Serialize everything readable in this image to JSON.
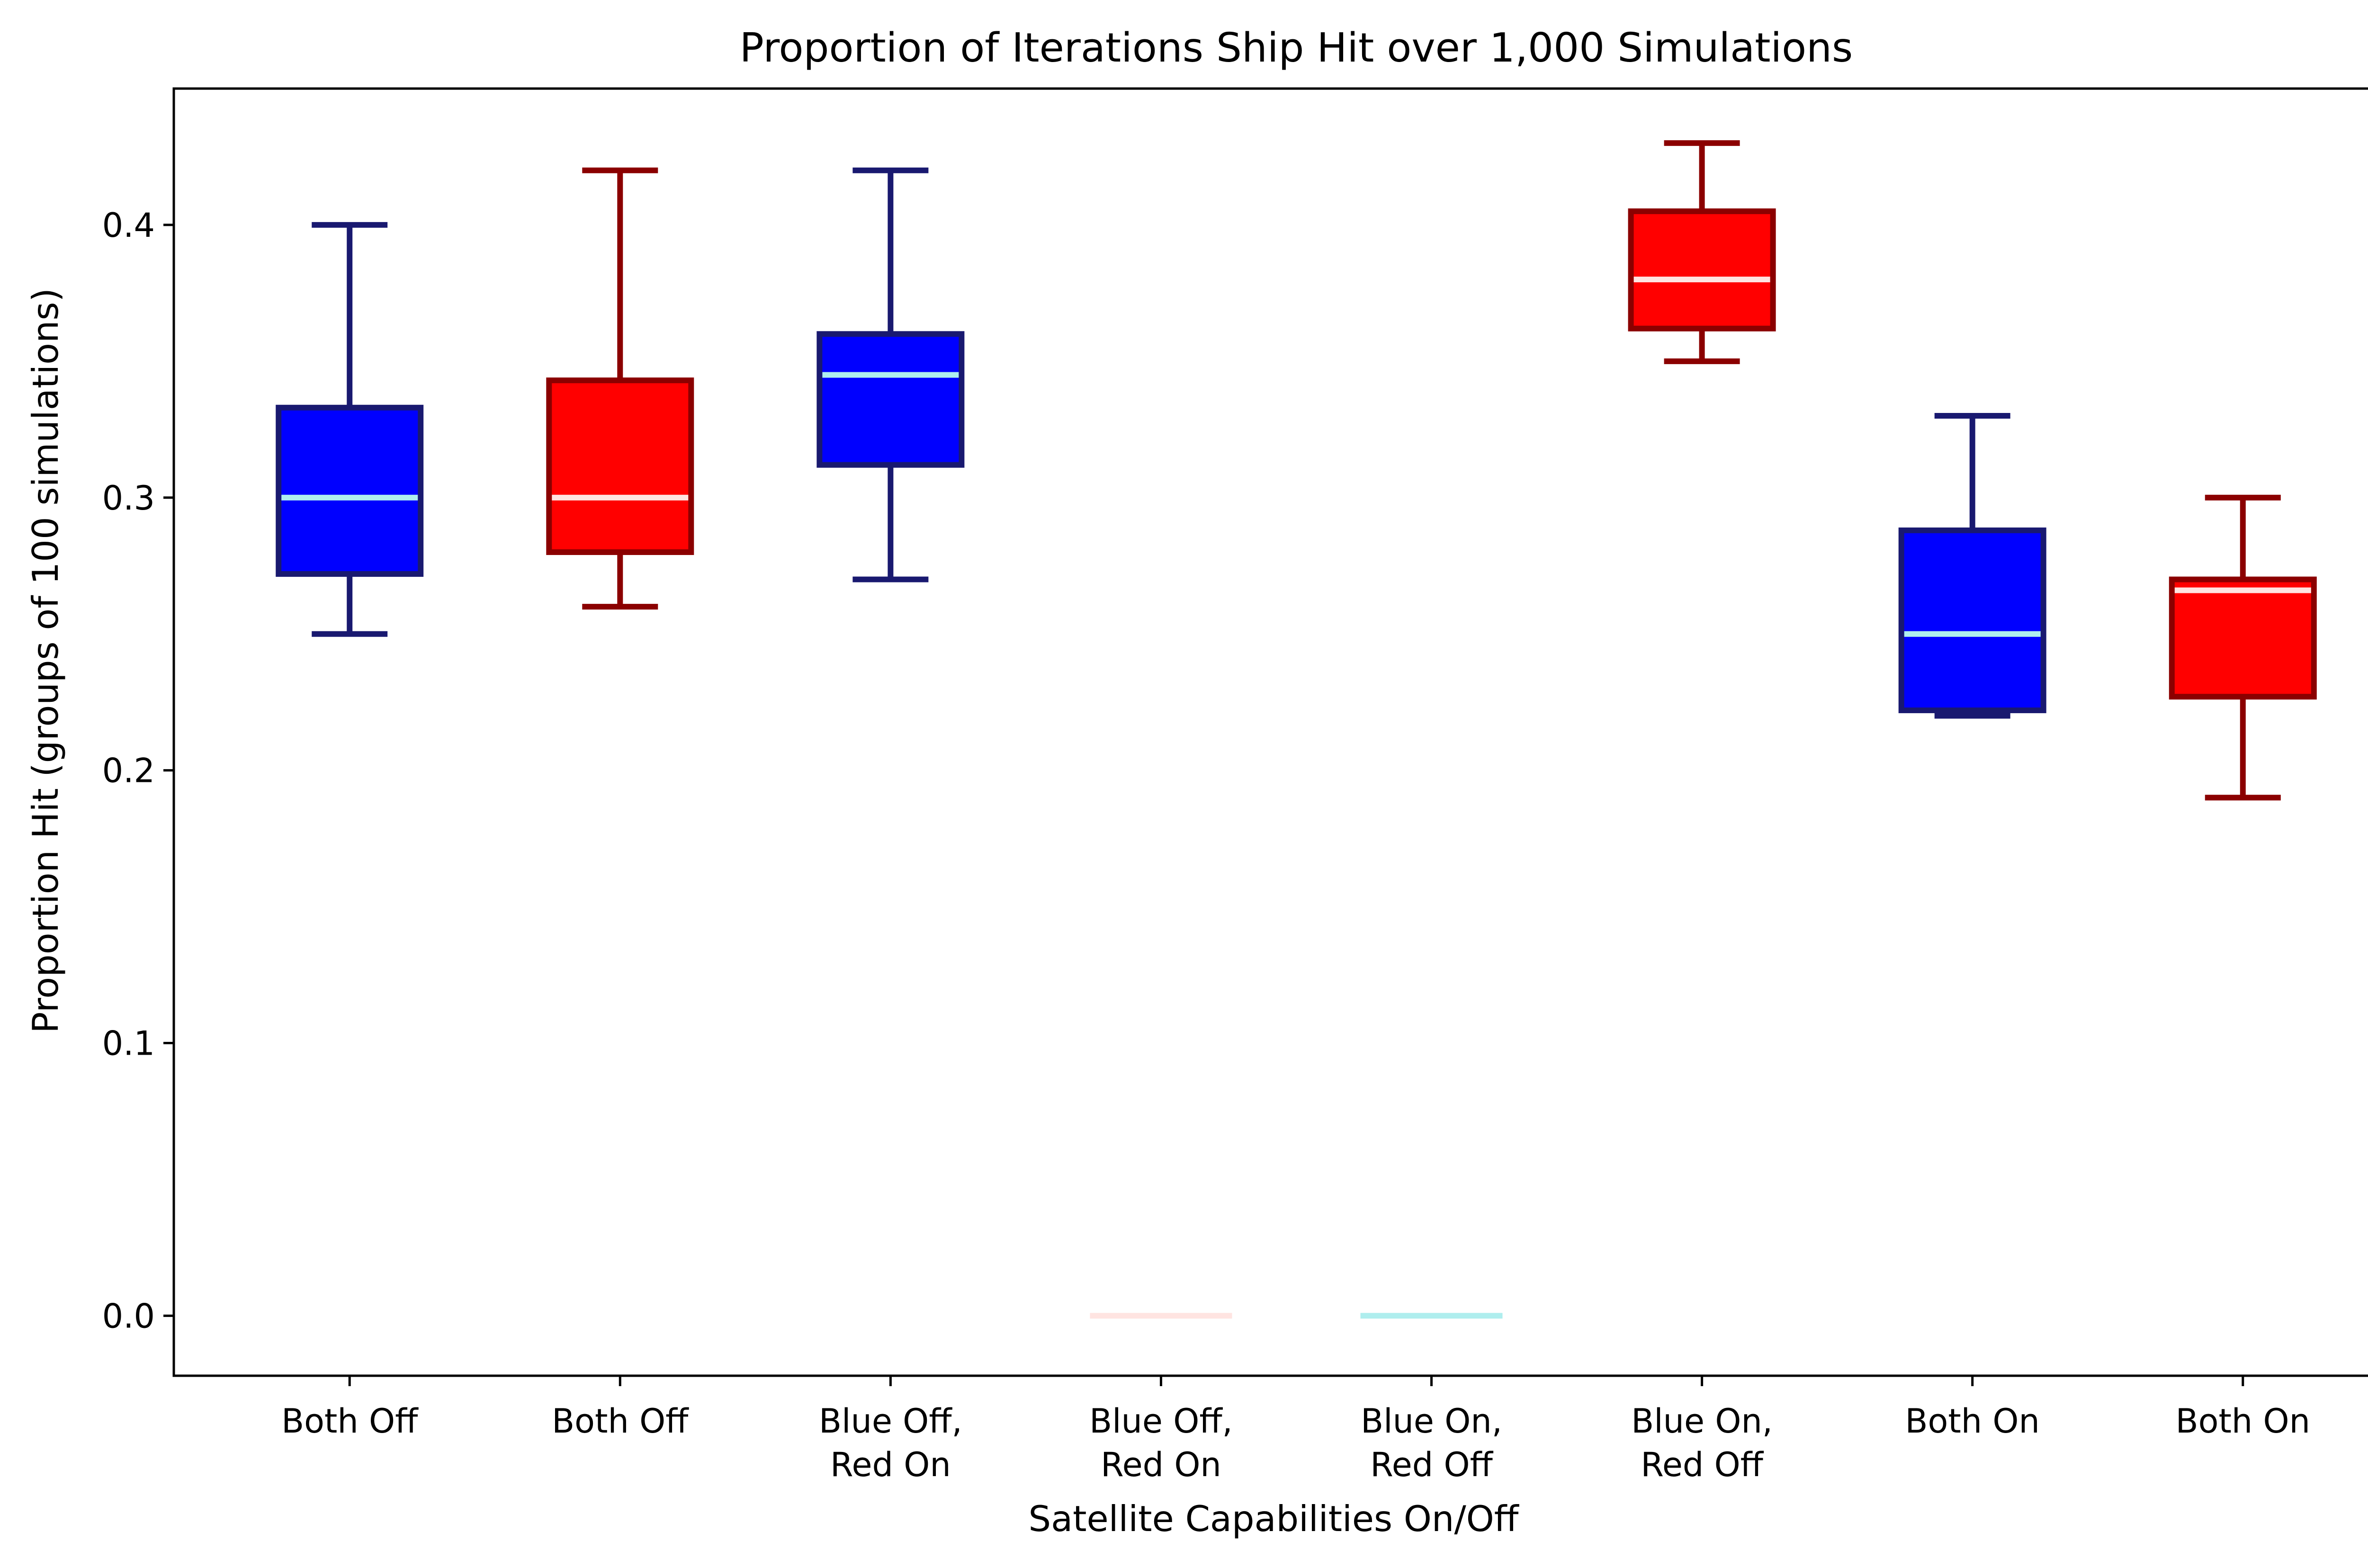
{
  "chart_data": {
    "type": "box",
    "title": "Proportion of Iterations Ship Hit over 1,000 Simulations",
    "xlabel": "Satellite Capabilities On/Off",
    "ylabel": "Proportion Hit (groups of 100 simulations)",
    "ylim": [
      -0.022,
      0.45
    ],
    "yticks": [
      "0.0",
      "0.1",
      "0.2",
      "0.3",
      "0.4"
    ],
    "ytick_values": [
      0.0,
      0.1,
      0.2,
      0.3,
      0.4
    ],
    "grid": false,
    "categories": [
      [
        "Both Off"
      ],
      [
        "Both Off"
      ],
      [
        "Blue Off,",
        "Red On"
      ],
      [
        "Blue Off,",
        "Red On"
      ],
      [
        "Blue On,",
        "Red Off"
      ],
      [
        "Blue On,",
        "Red Off"
      ],
      [
        "Both On"
      ],
      [
        "Both On"
      ]
    ],
    "boxes": [
      {
        "team": "blue",
        "min": 0.25,
        "q1": 0.272,
        "median": 0.3,
        "q3": 0.333,
        "max": 0.4
      },
      {
        "team": "red",
        "min": 0.26,
        "q1": 0.28,
        "median": 0.3,
        "q3": 0.343,
        "max": 0.42
      },
      {
        "team": "blue",
        "min": 0.27,
        "q1": 0.312,
        "median": 0.345,
        "q3": 0.36,
        "max": 0.42
      },
      {
        "team": "red",
        "min": 0.0,
        "q1": 0.0,
        "median": 0.0,
        "q3": 0.0,
        "max": 0.0
      },
      {
        "team": "blue",
        "min": 0.0,
        "q1": 0.0,
        "median": 0.0,
        "q3": 0.0,
        "max": 0.0
      },
      {
        "team": "red",
        "min": 0.35,
        "q1": 0.362,
        "median": 0.38,
        "q3": 0.405,
        "max": 0.43
      },
      {
        "team": "blue",
        "min": 0.22,
        "q1": 0.222,
        "median": 0.25,
        "q3": 0.288,
        "max": 0.33
      },
      {
        "team": "red",
        "min": 0.19,
        "q1": 0.227,
        "median": 0.266,
        "q3": 0.27,
        "max": 0.3
      }
    ],
    "colors": {
      "blue": {
        "fill": "#0000ff",
        "edge": "#191970",
        "median": "#afeeee"
      },
      "red": {
        "fill": "#ff0000",
        "edge": "#8b0000",
        "median": "#ffe4e1"
      }
    }
  }
}
